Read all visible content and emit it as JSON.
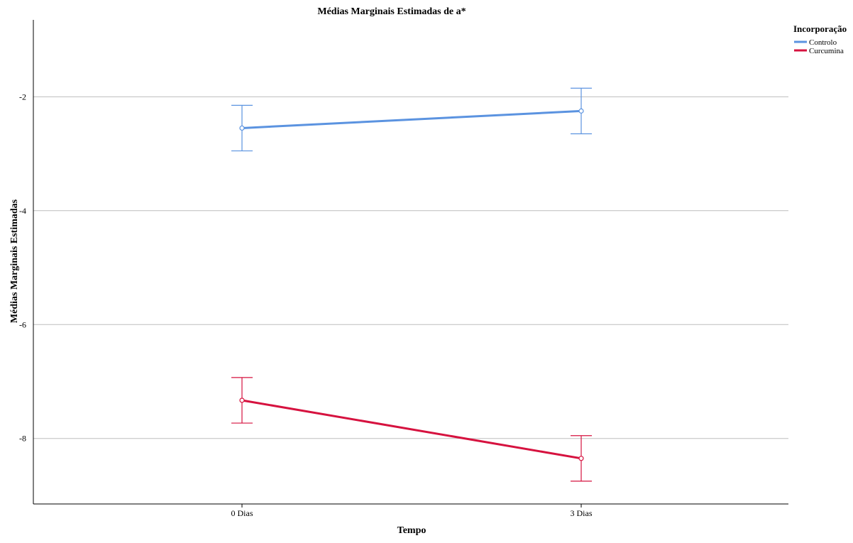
{
  "chart_data": {
    "type": "line",
    "title": "Médias Marginais Estimadas de a*",
    "xlabel": "Tempo",
    "ylabel": "Médias Marginais Estimadas",
    "categories": [
      "0 Dias",
      "3 Dias"
    ],
    "yticks": [
      -2,
      -4,
      -6,
      -8
    ],
    "ylim": [
      -9.15,
      -0.65
    ],
    "grid": true,
    "legend": {
      "title": "Incorporação",
      "placement": "top-right"
    },
    "error_bars": true,
    "series": [
      {
        "name": "Controlo",
        "color": "#5b93e0",
        "values": [
          -2.55,
          -2.25
        ],
        "lower": [
          -2.95,
          -2.65
        ],
        "upper": [
          -2.15,
          -1.85
        ]
      },
      {
        "name": "Curcumina",
        "color": "#d6123f",
        "values": [
          -7.33,
          -8.35
        ],
        "lower": [
          -7.73,
          -8.75
        ],
        "upper": [
          -6.93,
          -7.95
        ]
      }
    ]
  }
}
